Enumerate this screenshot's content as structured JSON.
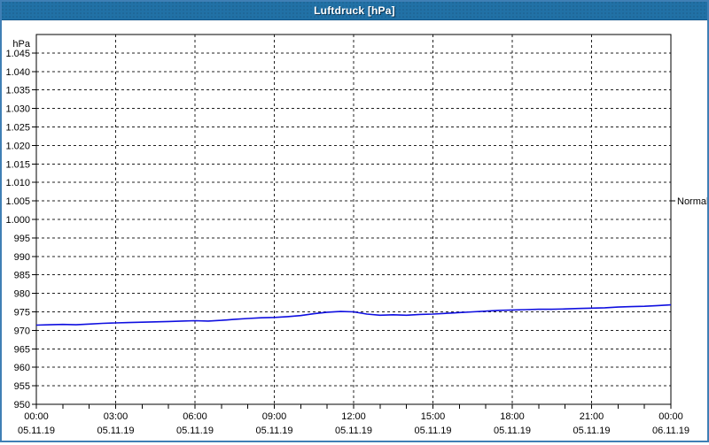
{
  "window": {
    "title": "Luftdruck [hPa]"
  },
  "colors": {
    "titlebar_bg": "#2171a6",
    "titlebar_text": "#ffffff",
    "frame_border": "#3f7fb5",
    "background": "#ffffff",
    "plot_border": "#000000",
    "grid": "#202020",
    "series_line": "#0f0fe0",
    "label_text": "#000000"
  },
  "chart_data": {
    "type": "line",
    "title": "Luftdruck [hPa]",
    "unit_label": "hPa",
    "grid": "dashed",
    "legend_position": "right-annotation",
    "ylim": [
      950,
      1050
    ],
    "xlim_hours": [
      0,
      24
    ],
    "x_minor_tick_hours": 1,
    "y_ticks": [
      {
        "value": 1045,
        "label": "1.045"
      },
      {
        "value": 1040,
        "label": "1.040"
      },
      {
        "value": 1035,
        "label": "1.035"
      },
      {
        "value": 1030,
        "label": "1.030"
      },
      {
        "value": 1025,
        "label": "1.025"
      },
      {
        "value": 1020,
        "label": "1.020"
      },
      {
        "value": 1015,
        "label": "1.015"
      },
      {
        "value": 1010,
        "label": "1.010"
      },
      {
        "value": 1005,
        "label": "1.005"
      },
      {
        "value": 1000,
        "label": "1.000"
      },
      {
        "value": 995,
        "label": "995"
      },
      {
        "value": 990,
        "label": "990"
      },
      {
        "value": 985,
        "label": "985"
      },
      {
        "value": 980,
        "label": "980"
      },
      {
        "value": 975,
        "label": "975"
      },
      {
        "value": 970,
        "label": "970"
      },
      {
        "value": 965,
        "label": "965"
      },
      {
        "value": 960,
        "label": "960"
      },
      {
        "value": 955,
        "label": "955"
      },
      {
        "value": 950,
        "label": "950"
      }
    ],
    "x_ticks": [
      {
        "hour": 0,
        "time": "00:00",
        "date": "05.11.19"
      },
      {
        "hour": 3,
        "time": "03:00",
        "date": "05.11.19"
      },
      {
        "hour": 6,
        "time": "06:00",
        "date": "05.11.19"
      },
      {
        "hour": 9,
        "time": "09:00",
        "date": "05.11.19"
      },
      {
        "hour": 12,
        "time": "12:00",
        "date": "05.11.19"
      },
      {
        "hour": 15,
        "time": "15:00",
        "date": "05.11.19"
      },
      {
        "hour": 18,
        "time": "18:00",
        "date": "05.11.19"
      },
      {
        "hour": 21,
        "time": "21:00",
        "date": "05.11.19"
      },
      {
        "hour": 24,
        "time": "00:00",
        "date": "06.11.19"
      }
    ],
    "annotations": [
      {
        "label": "Normal",
        "value": 1005,
        "side": "right"
      }
    ],
    "series": [
      {
        "name": "Luftdruck",
        "unit": "hPa",
        "x_hours": [
          0,
          0.5,
          1,
          1.5,
          2,
          2.5,
          3,
          3.5,
          4,
          4.5,
          5,
          5.5,
          6,
          6.5,
          7,
          7.5,
          8,
          8.5,
          9,
          9.5,
          10,
          10.5,
          11,
          11.5,
          12,
          12.5,
          13,
          13.5,
          14,
          14.5,
          15,
          15.5,
          16,
          16.5,
          17,
          17.5,
          18,
          18.5,
          19,
          19.5,
          20,
          20.5,
          21,
          21.5,
          22,
          22.5,
          23,
          23.5,
          24
        ],
        "values": [
          971.4,
          971.5,
          971.6,
          971.5,
          971.7,
          971.9,
          972.0,
          972.1,
          972.2,
          972.3,
          972.4,
          972.5,
          972.6,
          972.5,
          972.7,
          973.0,
          973.2,
          973.4,
          973.5,
          973.7,
          974.0,
          974.5,
          974.9,
          975.1,
          975.0,
          974.4,
          974.1,
          974.2,
          974.1,
          974.3,
          974.4,
          974.6,
          974.8,
          975.0,
          975.2,
          975.4,
          975.5,
          975.6,
          975.7,
          975.7,
          975.8,
          975.9,
          976.0,
          976.1,
          976.3,
          976.4,
          976.5,
          976.7,
          976.9
        ]
      }
    ]
  }
}
